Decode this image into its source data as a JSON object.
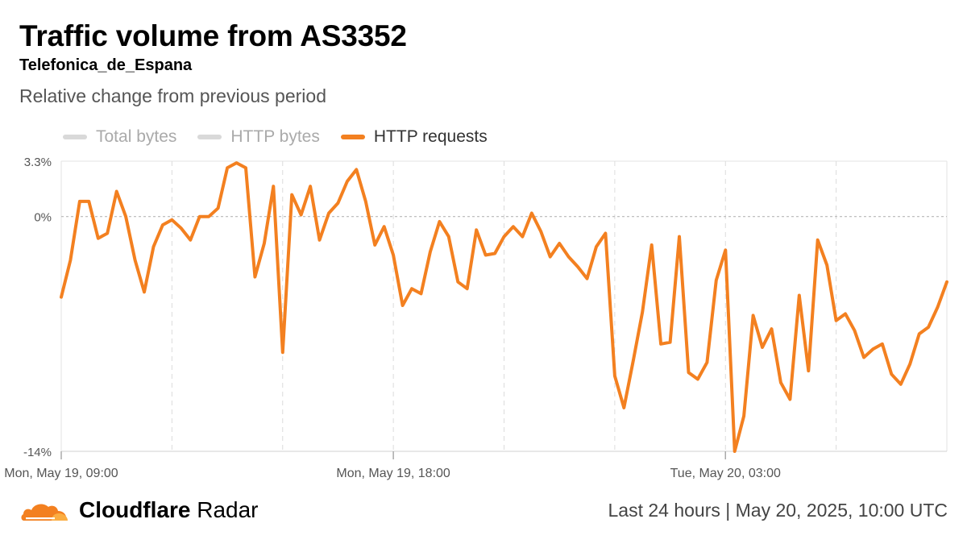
{
  "header": {
    "title": "Traffic volume from AS3352",
    "subtitle": "Telefonica_de_Espana",
    "description": "Relative change from previous period"
  },
  "legend": [
    {
      "label": "Total bytes",
      "color": "#d9d9d9",
      "text_color": "#aaaaaa"
    },
    {
      "label": "HTTP bytes",
      "color": "#d9d9d9",
      "text_color": "#aaaaaa"
    },
    {
      "label": "HTTP requests",
      "color": "#f38020",
      "text_color": "#333333"
    }
  ],
  "footer": {
    "brand_bold": "Cloudflare",
    "brand_light": " Radar",
    "range": "Last 24 hours",
    "separator": "|",
    "date": "May 20, 2025, 10:00 UTC"
  },
  "chart_data": {
    "type": "line",
    "title": "Traffic volume from AS3352",
    "subtitle": "Telefonica_de_Espana",
    "ylabel": "Relative change from previous period",
    "ylim": [
      -14,
      3.3
    ],
    "yticks": [
      {
        "value": 3.3,
        "label": "3.3%"
      },
      {
        "value": 0,
        "label": "0%"
      },
      {
        "value": -14,
        "label": "-14%"
      }
    ],
    "xlim": [
      0,
      24
    ],
    "xticks": [
      {
        "x": 0,
        "label": "Mon, May 19, 09:00"
      },
      {
        "x": 9,
        "label": "Mon, May 19, 18:00"
      },
      {
        "x": 18,
        "label": "Tue, May 20, 03:00"
      }
    ],
    "x_gridlines": [
      0,
      3,
      6,
      9,
      12,
      15,
      18,
      21,
      24
    ],
    "line_color": "#f38020",
    "series": [
      {
        "name": "HTTP requests",
        "x": [
          0,
          0.25,
          0.5,
          0.75,
          1,
          1.25,
          1.5,
          1.75,
          2,
          2.25,
          2.5,
          2.75,
          3,
          3.25,
          3.5,
          3.75,
          4,
          4.25,
          4.5,
          4.75,
          5,
          5.25,
          5.5,
          5.75,
          6,
          6.25,
          6.5,
          6.75,
          7,
          7.25,
          7.5,
          7.75,
          8,
          8.25,
          8.5,
          8.75,
          9,
          9.25,
          9.5,
          9.75,
          10,
          10.25,
          10.5,
          10.75,
          11,
          11.25,
          11.5,
          11.75,
          12,
          12.25,
          12.5,
          12.75,
          13,
          13.25,
          13.5,
          13.75,
          14,
          14.25,
          14.5,
          14.75,
          15,
          15.25,
          15.5,
          15.75,
          16,
          16.25,
          16.5,
          16.75,
          17,
          17.25,
          17.5,
          17.75,
          18,
          18.25,
          18.5,
          18.75,
          19,
          19.25,
          19.5,
          19.75,
          20,
          20.25,
          20.5,
          20.75,
          21,
          21.25,
          21.5,
          21.75,
          22,
          22.25,
          22.5,
          22.75,
          23,
          23.25,
          23.5,
          23.75,
          24
        ],
        "values": [
          -4.8,
          -2.6,
          0.9,
          0.9,
          -1.3,
          -1.0,
          1.5,
          0,
          -2.6,
          -4.5,
          -1.8,
          -0.5,
          -0.2,
          -0.7,
          -1.4,
          0,
          0,
          0.5,
          2.9,
          3.2,
          2.9,
          -3.6,
          -1.6,
          1.8,
          -8.1,
          1.3,
          0.1,
          1.8,
          -1.4,
          0.2,
          0.8,
          2.1,
          2.8,
          0.9,
          -1.7,
          -0.6,
          -2.3,
          -5.3,
          -4.3,
          -4.6,
          -2.1,
          -0.3,
          -1.2,
          -3.9,
          -4.3,
          -0.8,
          -2.3,
          -2.2,
          -1.2,
          -0.6,
          -1.2,
          0.2,
          -0.9,
          -2.4,
          -1.6,
          -2.4,
          -3.0,
          -3.7,
          -1.8,
          -1.0,
          -9.5,
          -11.4,
          -8.6,
          -5.7,
          -1.7,
          -7.6,
          -7.5,
          -1.2,
          -9.3,
          -9.7,
          -8.7,
          -3.8,
          -2.0,
          -14.0,
          -11.9,
          -5.9,
          -7.8,
          -6.7,
          -9.9,
          -10.9,
          -4.7,
          -9.2,
          -1.4,
          -2.9,
          -6.2,
          -5.8,
          -6.8,
          -8.4,
          -7.9,
          -7.6,
          -9.4,
          -10.0,
          -8.8,
          -7.0,
          -6.6,
          -5.4,
          -3.9
        ]
      }
    ]
  }
}
